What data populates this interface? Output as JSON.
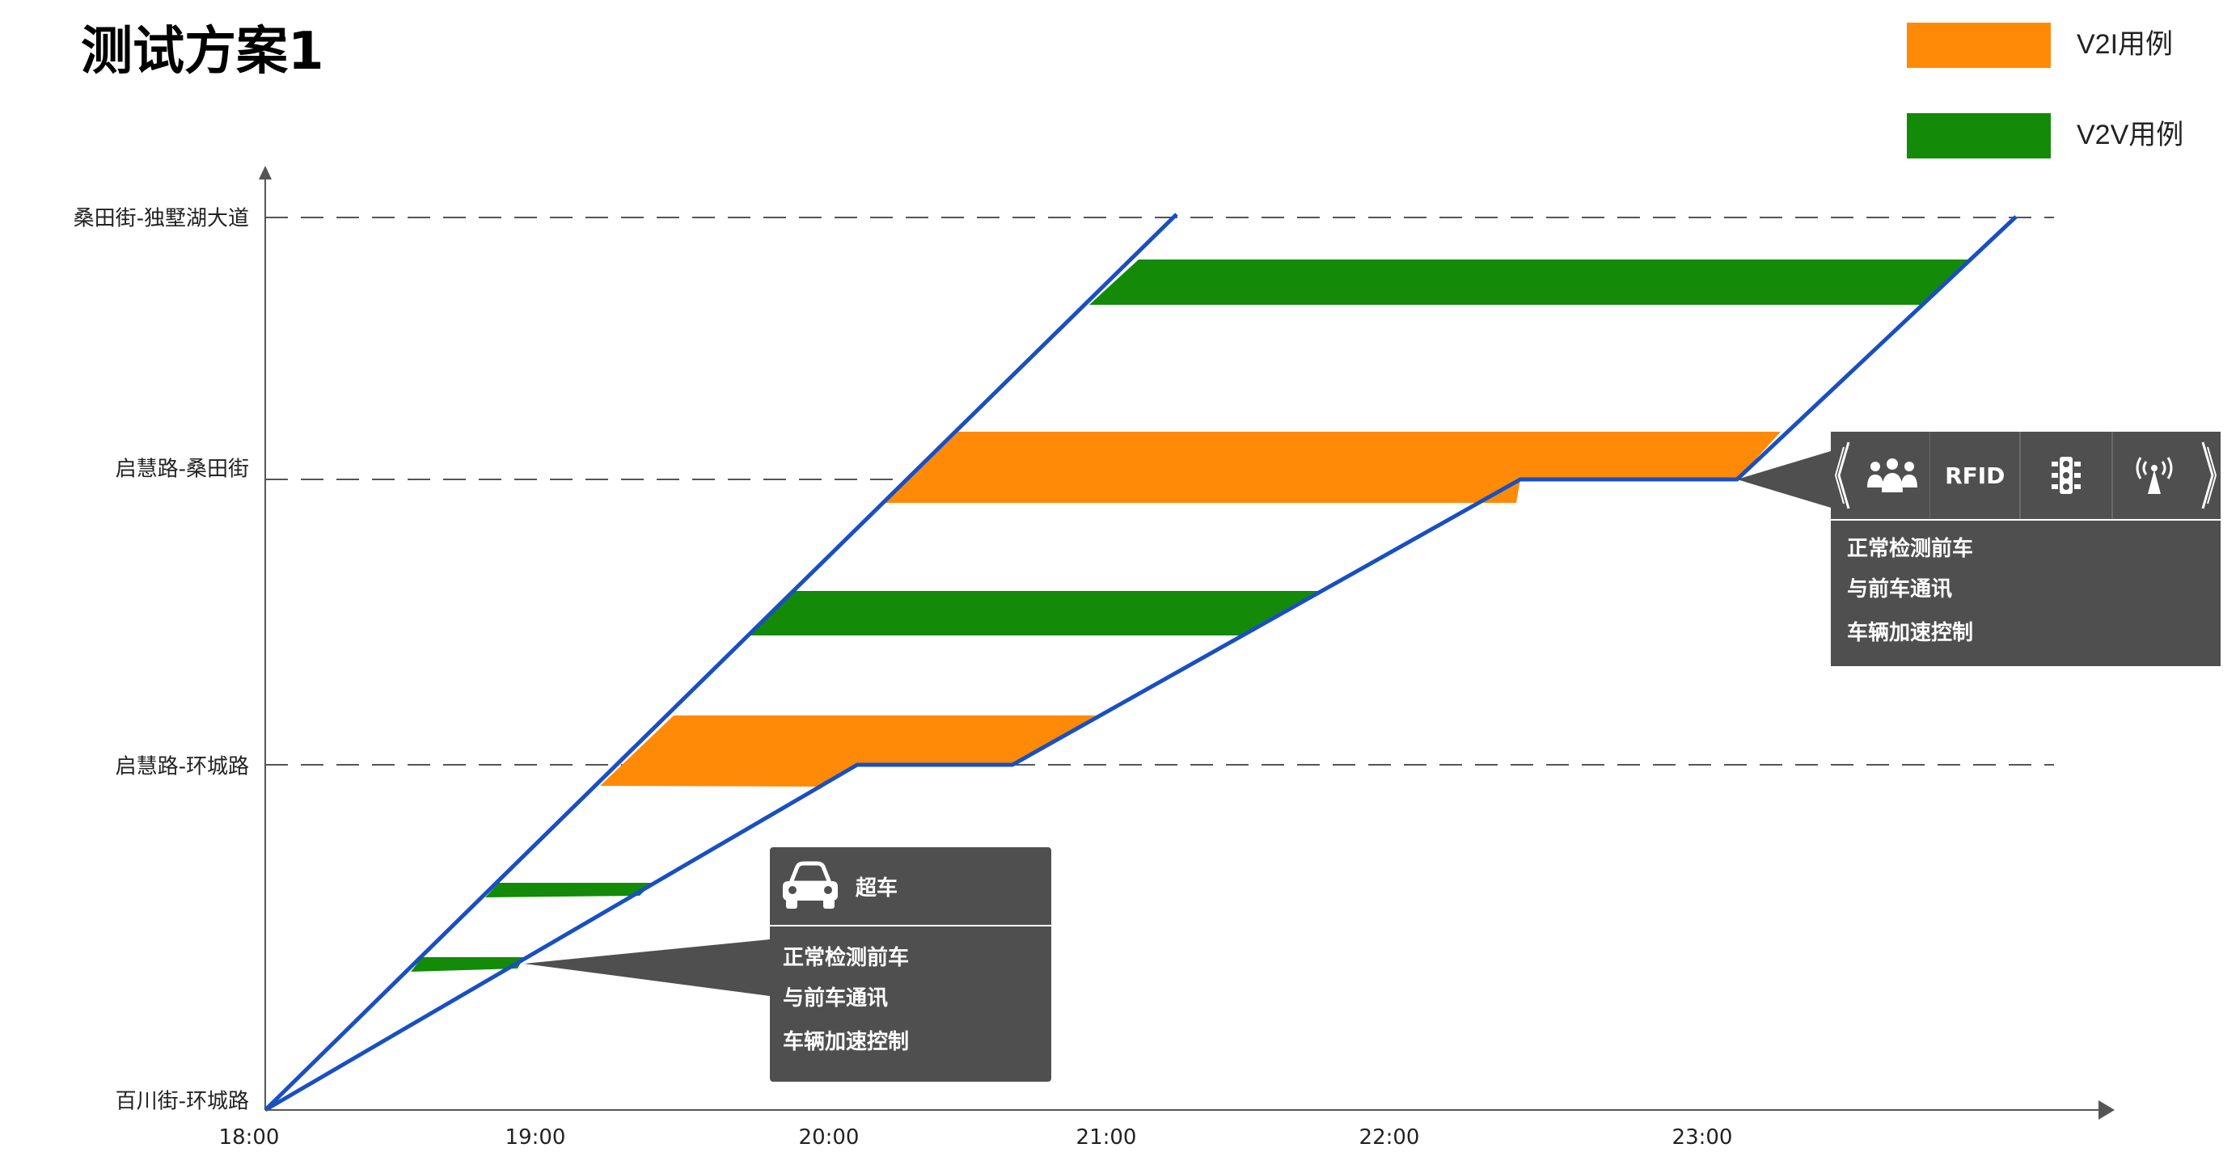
{
  "title": "测试方案1",
  "legend": [
    {
      "label": "V2I用例",
      "color": "#ff8a08"
    },
    {
      "label": "V2V用例",
      "color": "#138a08"
    }
  ],
  "y_axis": [
    "百川街-环城路",
    "启慧路-环城路",
    "启慧路-桑田街",
    "桑田街-独墅湖大道"
  ],
  "x_axis": [
    "18:00",
    "19:00",
    "20:00",
    "21:00",
    "22:00",
    "23:00"
  ],
  "callout_v2v": {
    "icon": "car-icon",
    "heading": "超车",
    "lines": [
      "正常检测前车",
      "与前车通讯",
      "车辆加速控制"
    ]
  },
  "callout_v2i": {
    "icons": [
      "chevron-left-icon",
      "people-icon",
      "traffic-light-icon",
      "antenna-icon",
      "chevron-right-icon"
    ],
    "rfid": "RFID",
    "lines": [
      "正常检测前车",
      "与前车通讯",
      "车辆加速控制"
    ]
  },
  "colors": {
    "line": "#1a4fc0",
    "v2i": "#ff8a08",
    "v2v": "#138a08",
    "callout": "#4f4f4f"
  }
}
